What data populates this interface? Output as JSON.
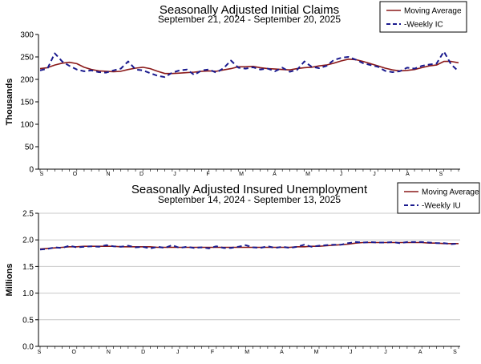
{
  "chart_data": [
    {
      "type": "line",
      "title": "Seasonally Adjusted Initial Claims",
      "subtitle": "September 21, 2024 - September 20, 2025",
      "ylabel": "Thousands",
      "ylim": [
        0,
        300
      ],
      "yticks": [
        0,
        50,
        100,
        150,
        200,
        250,
        300
      ],
      "month_labels": [
        "S",
        "O",
        "N",
        "D",
        "J",
        "F",
        "M",
        "A",
        "M",
        "J",
        "J",
        "A",
        "S"
      ],
      "legend": {
        "position": "top-right"
      },
      "grid": false,
      "series": [
        {
          "name": "Moving Average",
          "color": "#8b1a1a",
          "style": "solid",
          "values": [
            224,
            226,
            232,
            236,
            238,
            235,
            227,
            222,
            219,
            218,
            217,
            218,
            222,
            225,
            227,
            224,
            218,
            213,
            213,
            214,
            215,
            216,
            218,
            219,
            218,
            221,
            224,
            228,
            228,
            229,
            226,
            224,
            223,
            222,
            221,
            224,
            226,
            227,
            230,
            232,
            236,
            241,
            245,
            244,
            240,
            235,
            230,
            225,
            221,
            219,
            220,
            222,
            226,
            230,
            232,
            240,
            240,
            237
          ]
        },
        {
          "name": "-Weekly IC",
          "color": "#1a1a8e",
          "style": "dashed",
          "values": [
            220,
            224,
            258,
            240,
            230,
            222,
            218,
            220,
            216,
            215,
            220,
            224,
            240,
            222,
            220,
            214,
            208,
            205,
            215,
            220,
            222,
            210,
            220,
            222,
            215,
            225,
            242,
            226,
            224,
            227,
            222,
            224,
            218,
            226,
            217,
            221,
            240,
            228,
            225,
            230,
            243,
            248,
            250,
            244,
            236,
            232,
            228,
            219,
            216,
            218,
            226,
            224,
            230,
            233,
            235,
            262,
            233,
            218
          ]
        }
      ]
    },
    {
      "type": "line",
      "title": "Seasonally Adjusted Insured Unemployment",
      "subtitle": "September 14, 2024 - September 13, 2025",
      "ylabel": "Millions",
      "ylim": [
        0,
        2.5
      ],
      "yticks": [
        0.0,
        0.5,
        1.0,
        1.5,
        2.0,
        2.5
      ],
      "month_labels": [
        "S",
        "O",
        "N",
        "D",
        "J",
        "F",
        "M",
        "A",
        "M",
        "J",
        "J",
        "A",
        "S"
      ],
      "legend": {
        "position": "top-right"
      },
      "grid": true,
      "series": [
        {
          "name": "Moving Average",
          "color": "#8b1a1a",
          "style": "solid",
          "values": [
            1.83,
            1.84,
            1.85,
            1.86,
            1.87,
            1.87,
            1.88,
            1.88,
            1.88,
            1.88,
            1.88,
            1.87,
            1.87,
            1.87,
            1.87,
            1.87,
            1.86,
            1.86,
            1.86,
            1.86,
            1.86,
            1.86,
            1.86,
            1.86,
            1.86,
            1.86,
            1.86,
            1.86,
            1.86,
            1.86,
            1.86,
            1.86,
            1.86,
            1.86,
            1.86,
            1.87,
            1.87,
            1.88,
            1.88,
            1.89,
            1.9,
            1.91,
            1.92,
            1.94,
            1.95,
            1.95,
            1.95,
            1.95,
            1.95,
            1.95,
            1.95,
            1.95,
            1.95,
            1.94,
            1.94,
            1.93,
            1.93,
            1.93
          ]
        },
        {
          "name": "-Weekly IU",
          "color": "#1a1a8e",
          "style": "dashed",
          "values": [
            1.82,
            1.83,
            1.86,
            1.85,
            1.89,
            1.86,
            1.87,
            1.88,
            1.87,
            1.9,
            1.88,
            1.87,
            1.89,
            1.86,
            1.87,
            1.84,
            1.87,
            1.85,
            1.9,
            1.85,
            1.87,
            1.85,
            1.86,
            1.84,
            1.88,
            1.85,
            1.85,
            1.87,
            1.9,
            1.86,
            1.85,
            1.88,
            1.85,
            1.87,
            1.85,
            1.87,
            1.91,
            1.87,
            1.89,
            1.9,
            1.91,
            1.91,
            1.94,
            1.96,
            1.95,
            1.96,
            1.95,
            1.95,
            1.96,
            1.94,
            1.96,
            1.96,
            1.96,
            1.95,
            1.94,
            1.94,
            1.92,
            1.93
          ]
        }
      ]
    }
  ]
}
